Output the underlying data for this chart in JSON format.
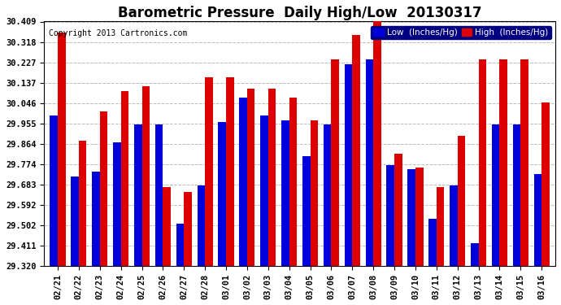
{
  "title": "Barometric Pressure  Daily High/Low  20130317",
  "copyright": "Copyright 2013 Cartronics.com",
  "dates": [
    "02/21",
    "02/22",
    "02/23",
    "02/24",
    "02/25",
    "02/26",
    "02/27",
    "02/28",
    "03/01",
    "03/02",
    "03/03",
    "03/04",
    "03/05",
    "03/06",
    "03/07",
    "03/08",
    "03/09",
    "03/10",
    "03/11",
    "03/12",
    "03/13",
    "03/14",
    "03/15",
    "03/16"
  ],
  "low_values": [
    29.99,
    29.72,
    29.74,
    29.87,
    29.95,
    29.95,
    29.51,
    29.68,
    29.96,
    30.07,
    29.99,
    29.97,
    29.81,
    29.95,
    30.22,
    30.24,
    29.77,
    29.75,
    29.53,
    29.68,
    29.42,
    29.95,
    29.95,
    29.73
  ],
  "high_values": [
    30.36,
    29.88,
    30.01,
    30.1,
    30.12,
    29.67,
    29.65,
    30.16,
    30.16,
    30.11,
    30.11,
    30.07,
    29.97,
    30.24,
    30.35,
    30.41,
    29.82,
    29.76,
    29.67,
    29.9,
    30.24,
    30.24,
    30.24,
    30.05
  ],
  "low_color": "#0000dd",
  "high_color": "#dd0000",
  "background_color": "#ffffff",
  "plot_bg_color": "#ffffff",
  "grid_color": "#bbbbbb",
  "yticks": [
    29.32,
    29.411,
    29.502,
    29.592,
    29.683,
    29.774,
    29.864,
    29.955,
    30.046,
    30.137,
    30.227,
    30.318,
    30.409
  ],
  "ymin": 29.32,
  "ymax": 30.409,
  "title_fontsize": 12,
  "tick_fontsize": 7.5,
  "copyright_fontsize": 7,
  "legend_fontsize": 7.5,
  "legend_low_label": "Low  (Inches/Hg)",
  "legend_high_label": "High  (Inches/Hg)",
  "bar_width": 0.37
}
